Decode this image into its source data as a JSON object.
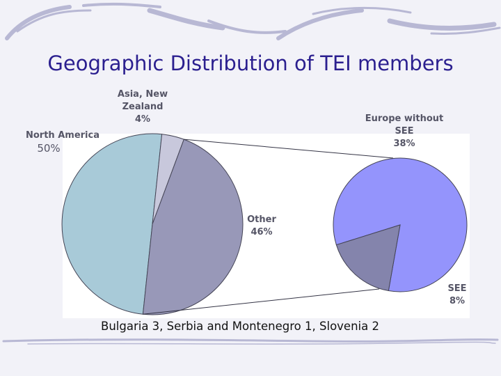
{
  "title": "Geographic Distribution of TEI members",
  "chart_data": [
    {
      "type": "pie",
      "slices": [
        {
          "label": "North America",
          "value": 50,
          "value_label": "50%",
          "color": "#a8cad8"
        },
        {
          "label": "Asia, New Zealand",
          "value": 4,
          "value_label": "4%",
          "color": "#c8c8dc"
        },
        {
          "label": "Other",
          "value": 46,
          "value_label": "46%",
          "color": "#9898b8"
        }
      ]
    },
    {
      "type": "pie",
      "slices": [
        {
          "label": "Europe without SEE",
          "value": 38,
          "value_label": "38%",
          "color": "#9494fc"
        },
        {
          "label": "SEE",
          "value": 8,
          "value_label": "8%",
          "color": "#8484ac"
        }
      ]
    }
  ],
  "footnote": "Bulgaria 3, Serbia and Montenegro 1, Slovenia 2",
  "labels": {
    "north_america": {
      "name": "North America",
      "pct": "50%"
    },
    "asia": {
      "line1": "Asia, New",
      "line2": "Zealand",
      "pct": "4%"
    },
    "other": {
      "name": "Other",
      "pct": "46%"
    },
    "europe": {
      "line1": "Europe without",
      "line2": "SEE",
      "pct": "38%"
    },
    "see": {
      "name": "SEE",
      "pct": "8%"
    }
  }
}
